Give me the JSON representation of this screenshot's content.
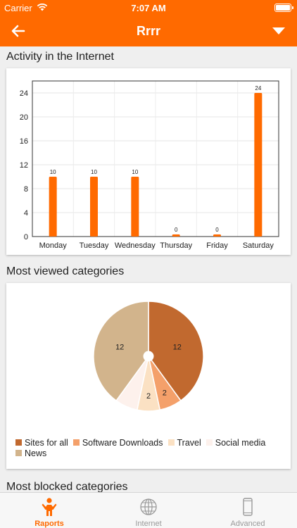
{
  "status_bar": {
    "carrier": "Carrier",
    "time": "7:07 AM"
  },
  "nav": {
    "title": "Rrrr"
  },
  "sections": {
    "activity_title": "Activity in the Internet",
    "categories_title": "Most viewed categories",
    "blocked_title": "Most blocked categories"
  },
  "colors": {
    "accent": "#ff6a00",
    "bar": "#ff6a00"
  },
  "chart_data": [
    {
      "type": "bar",
      "categories": [
        "Monday",
        "Tuesday",
        "Wednesday",
        "Thursday",
        "Friday",
        "Saturday"
      ],
      "values": [
        10,
        10,
        10,
        0,
        0,
        24
      ],
      "data_labels": [
        "10",
        "10",
        "10",
        "0",
        "0",
        "24"
      ],
      "y_ticks": [
        "0",
        "4",
        "8",
        "12",
        "16",
        "20",
        "24"
      ],
      "ylim": [
        0,
        26
      ],
      "grid": true,
      "bar_color": "#ff6a00"
    },
    {
      "type": "pie",
      "labels": [
        "Sites for all",
        "Software Downloads",
        "Travel",
        "Social media",
        "News"
      ],
      "values": [
        12,
        2,
        2,
        2,
        12
      ],
      "value_labels": [
        "12",
        "2",
        "2",
        "",
        "12"
      ],
      "colors": [
        "#c1692f",
        "#f4a06a",
        "#fbe1c3",
        "#fdf1ec",
        "#d2b48c"
      ],
      "legend_position": "bottom-left",
      "donut_hole": true
    }
  ],
  "tabs": [
    {
      "label": "Raports",
      "icon": "person-icon",
      "active": true
    },
    {
      "label": "Internet",
      "icon": "globe-icon",
      "active": false
    },
    {
      "label": "Advanced",
      "icon": "phone-icon",
      "active": false
    }
  ]
}
